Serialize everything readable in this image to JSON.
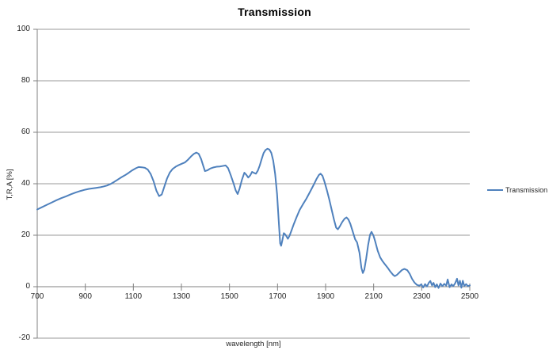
{
  "colors": {
    "series_line": "#4F81BD",
    "gridline": "#9A9A9A",
    "axis_line": "#808080",
    "tick_text": "#262626",
    "title_text": "#000000",
    "background": "#FFFFFF"
  },
  "legend": {
    "label": "Transmission",
    "position": "right"
  },
  "chart_data": {
    "type": "line",
    "title": "Transmission",
    "xlabel": "wavelength [nm]",
    "ylabel": "T,R,A [%]",
    "xlim": [
      700,
      2500
    ],
    "ylim": [
      -20,
      100
    ],
    "x_ticks": [
      700,
      900,
      1100,
      1300,
      1500,
      1700,
      1900,
      2100,
      2300,
      2500
    ],
    "y_ticks": [
      100,
      80,
      60,
      40,
      20,
      0,
      -20
    ],
    "grid": "horizontal-only",
    "x_axis_at_y": 0,
    "legend_position": "right",
    "series": [
      {
        "name": "Transmission",
        "color": "#4F81BD",
        "points": [
          [
            700,
            30.0
          ],
          [
            720,
            30.9
          ],
          [
            740,
            31.8
          ],
          [
            760,
            32.7
          ],
          [
            780,
            33.6
          ],
          [
            800,
            34.4
          ],
          [
            820,
            35.1
          ],
          [
            840,
            35.9
          ],
          [
            860,
            36.6
          ],
          [
            880,
            37.2
          ],
          [
            900,
            37.7
          ],
          [
            915,
            38.0
          ],
          [
            930,
            38.2
          ],
          [
            945,
            38.4
          ],
          [
            960,
            38.6
          ],
          [
            975,
            38.9
          ],
          [
            990,
            39.3
          ],
          [
            1005,
            39.9
          ],
          [
            1020,
            40.7
          ],
          [
            1035,
            41.6
          ],
          [
            1050,
            42.5
          ],
          [
            1065,
            43.3
          ],
          [
            1080,
            44.2
          ],
          [
            1095,
            45.2
          ],
          [
            1110,
            46.0
          ],
          [
            1122,
            46.5
          ],
          [
            1135,
            46.4
          ],
          [
            1148,
            46.2
          ],
          [
            1160,
            45.5
          ],
          [
            1172,
            43.8
          ],
          [
            1184,
            41.0
          ],
          [
            1196,
            37.3
          ],
          [
            1207,
            35.2
          ],
          [
            1218,
            35.8
          ],
          [
            1228,
            38.6
          ],
          [
            1240,
            42.0
          ],
          [
            1252,
            44.4
          ],
          [
            1264,
            45.8
          ],
          [
            1276,
            46.6
          ],
          [
            1290,
            47.3
          ],
          [
            1302,
            47.8
          ],
          [
            1315,
            48.3
          ],
          [
            1328,
            49.4
          ],
          [
            1340,
            50.6
          ],
          [
            1352,
            51.6
          ],
          [
            1362,
            52.1
          ],
          [
            1372,
            51.6
          ],
          [
            1382,
            49.6
          ],
          [
            1390,
            47.2
          ],
          [
            1398,
            44.9
          ],
          [
            1408,
            45.2
          ],
          [
            1420,
            45.9
          ],
          [
            1432,
            46.3
          ],
          [
            1446,
            46.6
          ],
          [
            1460,
            46.7
          ],
          [
            1472,
            46.9
          ],
          [
            1484,
            47.1
          ],
          [
            1494,
            46.1
          ],
          [
            1505,
            43.4
          ],
          [
            1516,
            40.4
          ],
          [
            1526,
            37.4
          ],
          [
            1534,
            36.0
          ],
          [
            1542,
            38.1
          ],
          [
            1552,
            41.6
          ],
          [
            1562,
            44.3
          ],
          [
            1570,
            43.5
          ],
          [
            1578,
            42.4
          ],
          [
            1586,
            43.2
          ],
          [
            1594,
            44.6
          ],
          [
            1602,
            44.2
          ],
          [
            1610,
            43.9
          ],
          [
            1618,
            45.1
          ],
          [
            1626,
            47.1
          ],
          [
            1634,
            49.6
          ],
          [
            1642,
            51.9
          ],
          [
            1650,
            53.1
          ],
          [
            1658,
            53.6
          ],
          [
            1666,
            53.3
          ],
          [
            1674,
            52.0
          ],
          [
            1682,
            49.0
          ],
          [
            1690,
            43.8
          ],
          [
            1698,
            36.0
          ],
          [
            1706,
            24.0
          ],
          [
            1711,
            16.8
          ],
          [
            1715,
            15.9
          ],
          [
            1720,
            18.0
          ],
          [
            1726,
            20.8
          ],
          [
            1731,
            20.4
          ],
          [
            1737,
            19.6
          ],
          [
            1743,
            18.6
          ],
          [
            1750,
            19.8
          ],
          [
            1758,
            21.8
          ],
          [
            1768,
            24.4
          ],
          [
            1780,
            27.2
          ],
          [
            1792,
            29.8
          ],
          [
            1805,
            31.9
          ],
          [
            1820,
            34.2
          ],
          [
            1835,
            36.8
          ],
          [
            1850,
            39.5
          ],
          [
            1862,
            41.8
          ],
          [
            1872,
            43.4
          ],
          [
            1879,
            43.9
          ],
          [
            1887,
            43.1
          ],
          [
            1895,
            40.9
          ],
          [
            1905,
            37.6
          ],
          [
            1915,
            34.0
          ],
          [
            1925,
            30.0
          ],
          [
            1935,
            26.0
          ],
          [
            1944,
            22.9
          ],
          [
            1951,
            22.3
          ],
          [
            1959,
            23.4
          ],
          [
            1969,
            25.1
          ],
          [
            1979,
            26.4
          ],
          [
            1987,
            26.9
          ],
          [
            1995,
            26.1
          ],
          [
            2003,
            24.4
          ],
          [
            2013,
            21.4
          ],
          [
            2023,
            18.4
          ],
          [
            2031,
            17.2
          ],
          [
            2041,
            13.2
          ],
          [
            2049,
            7.3
          ],
          [
            2055,
            5.3
          ],
          [
            2061,
            6.6
          ],
          [
            2069,
            11.0
          ],
          [
            2077,
            16.2
          ],
          [
            2085,
            20.2
          ],
          [
            2091,
            21.3
          ],
          [
            2099,
            19.9
          ],
          [
            2107,
            17.4
          ],
          [
            2117,
            13.9
          ],
          [
            2127,
            11.4
          ],
          [
            2137,
            9.9
          ],
          [
            2146,
            8.8
          ],
          [
            2158,
            7.4
          ],
          [
            2170,
            5.8
          ],
          [
            2181,
            4.6
          ],
          [
            2188,
            4.1
          ],
          [
            2197,
            4.6
          ],
          [
            2207,
            5.5
          ],
          [
            2218,
            6.5
          ],
          [
            2228,
            6.9
          ],
          [
            2240,
            6.4
          ],
          [
            2250,
            5.0
          ],
          [
            2260,
            3.0
          ],
          [
            2270,
            1.6
          ],
          [
            2280,
            0.7
          ],
          [
            2290,
            0.4
          ],
          [
            2298,
            0.9
          ],
          [
            2306,
            -0.3
          ],
          [
            2314,
            1.0
          ],
          [
            2322,
            0.1
          ],
          [
            2330,
            1.6
          ],
          [
            2336,
            2.2
          ],
          [
            2343,
            0.5
          ],
          [
            2349,
            1.5
          ],
          [
            2356,
            -0.2
          ],
          [
            2363,
            0.9
          ],
          [
            2370,
            -0.5
          ],
          [
            2378,
            1.2
          ],
          [
            2386,
            0.2
          ],
          [
            2394,
            1.1
          ],
          [
            2402,
            0.4
          ],
          [
            2408,
            2.8
          ],
          [
            2416,
            -0.2
          ],
          [
            2424,
            0.9
          ],
          [
            2431,
            0.2
          ],
          [
            2439,
            1.3
          ],
          [
            2447,
            3.1
          ],
          [
            2453,
            0.5
          ],
          [
            2459,
            2.3
          ],
          [
            2465,
            -0.4
          ],
          [
            2471,
            2.3
          ],
          [
            2477,
            0.3
          ],
          [
            2485,
            1.0
          ],
          [
            2492,
            0.2
          ],
          [
            2500,
            0.5
          ]
        ]
      }
    ]
  }
}
